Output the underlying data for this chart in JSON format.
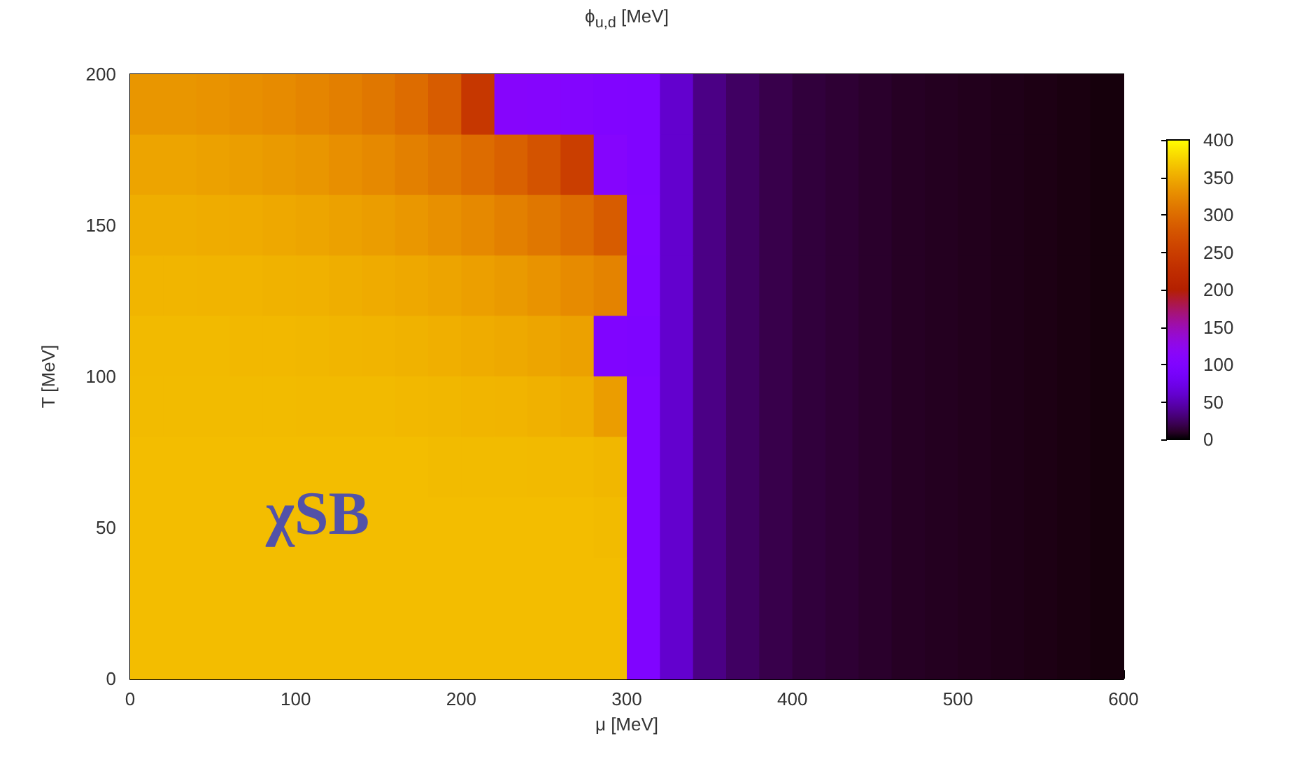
{
  "chart_data": {
    "type": "heatmap",
    "title": "ϕ$_{u,d}$ [MeV]",
    "xlabel": "μ [MeV]",
    "ylabel": "T [MeV]",
    "x": [
      10,
      30,
      50,
      70,
      90,
      110,
      130,
      150,
      170,
      190,
      210,
      230,
      250,
      270,
      290,
      310,
      330,
      350,
      370,
      390,
      410,
      430,
      450,
      470,
      490,
      510,
      530,
      550,
      570,
      590
    ],
    "y": [
      190,
      170,
      150,
      130,
      110,
      90,
      70,
      50,
      30,
      10
    ],
    "xlim": [
      0,
      600
    ],
    "xticks": [
      0,
      100,
      200,
      300,
      400,
      500,
      600
    ],
    "ylim": [
      0,
      200
    ],
    "yticks": [
      0,
      50,
      100,
      150,
      200
    ],
    "clim": [
      0,
      400
    ],
    "cticks": [
      0,
      50,
      100,
      150,
      200,
      250,
      300,
      350,
      400
    ],
    "cells": [
      [
        335,
        335,
        333,
        330,
        327,
        322,
        317,
        310,
        300,
        285,
        240,
        110,
        108,
        105,
        102,
        100,
        60,
        35,
        25,
        19,
        15,
        13,
        11,
        9,
        8,
        7,
        6,
        5,
        4,
        3
      ],
      [
        345,
        345,
        343,
        341,
        338,
        335,
        330,
        325,
        318,
        310,
        300,
        290,
        275,
        250,
        108,
        100,
        60,
        35,
        25,
        19,
        15,
        13,
        11,
        9,
        8,
        7,
        6,
        5,
        4,
        3
      ],
      [
        352,
        352,
        351,
        350,
        348,
        346,
        343,
        340,
        336,
        331,
        325,
        318,
        310,
        300,
        285,
        102,
        60,
        35,
        25,
        19,
        15,
        13,
        11,
        9,
        8,
        7,
        6,
        5,
        4,
        3
      ],
      [
        357,
        357,
        356,
        356,
        355,
        354,
        352,
        350,
        348,
        345,
        342,
        338,
        333,
        327,
        320,
        100,
        60,
        35,
        25,
        19,
        15,
        13,
        11,
        9,
        8,
        7,
        6,
        5,
        4,
        3
      ],
      [
        360,
        360,
        360,
        359,
        359,
        358,
        357,
        356,
        355,
        353,
        351,
        349,
        346,
        343,
        100,
        98,
        60,
        35,
        25,
        19,
        15,
        13,
        11,
        9,
        8,
        7,
        6,
        5,
        4,
        3
      ],
      [
        361,
        361,
        361,
        361,
        361,
        360,
        360,
        360,
        359,
        358,
        357,
        356,
        354,
        352,
        340,
        100,
        60,
        35,
        25,
        19,
        15,
        13,
        11,
        9,
        8,
        7,
        6,
        5,
        4,
        3
      ],
      [
        362,
        362,
        362,
        362,
        362,
        362,
        362,
        362,
        362,
        361,
        361,
        361,
        360,
        360,
        358,
        100,
        60,
        35,
        25,
        19,
        15,
        13,
        11,
        9,
        8,
        7,
        6,
        5,
        4,
        3
      ],
      [
        362,
        362,
        362,
        362,
        362,
        362,
        362,
        362,
        362,
        362,
        362,
        362,
        362,
        362,
        361,
        100,
        60,
        35,
        25,
        19,
        15,
        13,
        11,
        9,
        8,
        7,
        6,
        5,
        4,
        3
      ],
      [
        362,
        362,
        362,
        362,
        362,
        362,
        362,
        362,
        362,
        362,
        362,
        362,
        362,
        362,
        362,
        100,
        60,
        35,
        25,
        19,
        15,
        13,
        11,
        9,
        8,
        7,
        6,
        5,
        4,
        3
      ],
      [
        362,
        362,
        362,
        362,
        362,
        362,
        362,
        362,
        362,
        362,
        362,
        362,
        362,
        362,
        362,
        100,
        60,
        35,
        25,
        19,
        15,
        13,
        11,
        9,
        8,
        7,
        6,
        5,
        4,
        3
      ]
    ],
    "annotations": [
      "χSB"
    ]
  }
}
